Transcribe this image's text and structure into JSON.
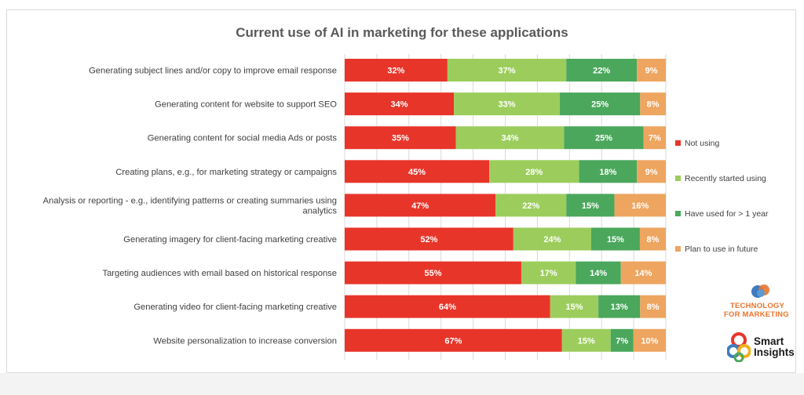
{
  "chart_data": {
    "type": "bar",
    "orientation": "horizontal-stacked-100",
    "title": "Current use of AI in marketing for these applications",
    "categories": [
      "Generating subject lines and/or copy to improve email response",
      "Generating content for website to support SEO",
      "Generating content for social media Ads or posts",
      "Creating plans, e.g., for marketing strategy or campaigns",
      "Analysis or reporting - e.g., identifying patterns or creating summaries using analytics",
      "Generating imagery for client-facing marketing creative",
      "Targeting audiences with email based on historical response",
      "Generating video for client-facing marketing creative",
      "Website personalization to increase conversion"
    ],
    "series": [
      {
        "name": "Not using",
        "color": "#e8352a",
        "values": [
          32,
          34,
          35,
          45,
          47,
          52,
          55,
          64,
          67
        ]
      },
      {
        "name": "Recently started using",
        "color": "#9ccd5c",
        "values": [
          37,
          33,
          34,
          28,
          22,
          24,
          17,
          15,
          15
        ]
      },
      {
        "name": "Have used for > 1 year",
        "color": "#4aa75c",
        "values": [
          22,
          25,
          25,
          18,
          15,
          15,
          14,
          13,
          7
        ]
      },
      {
        "name": "Plan to use in future",
        "color": "#eea560",
        "values": [
          9,
          8,
          7,
          9,
          16,
          8,
          14,
          8,
          10
        ]
      }
    ],
    "value_suffix": "%",
    "legend_position": "right",
    "grid": "vertical"
  },
  "logos": {
    "tfm_line1": "TECHNOLOGY",
    "tfm_line2": "FOR MARKETING",
    "si_line1": "Smart",
    "si_line2": "Insights"
  }
}
